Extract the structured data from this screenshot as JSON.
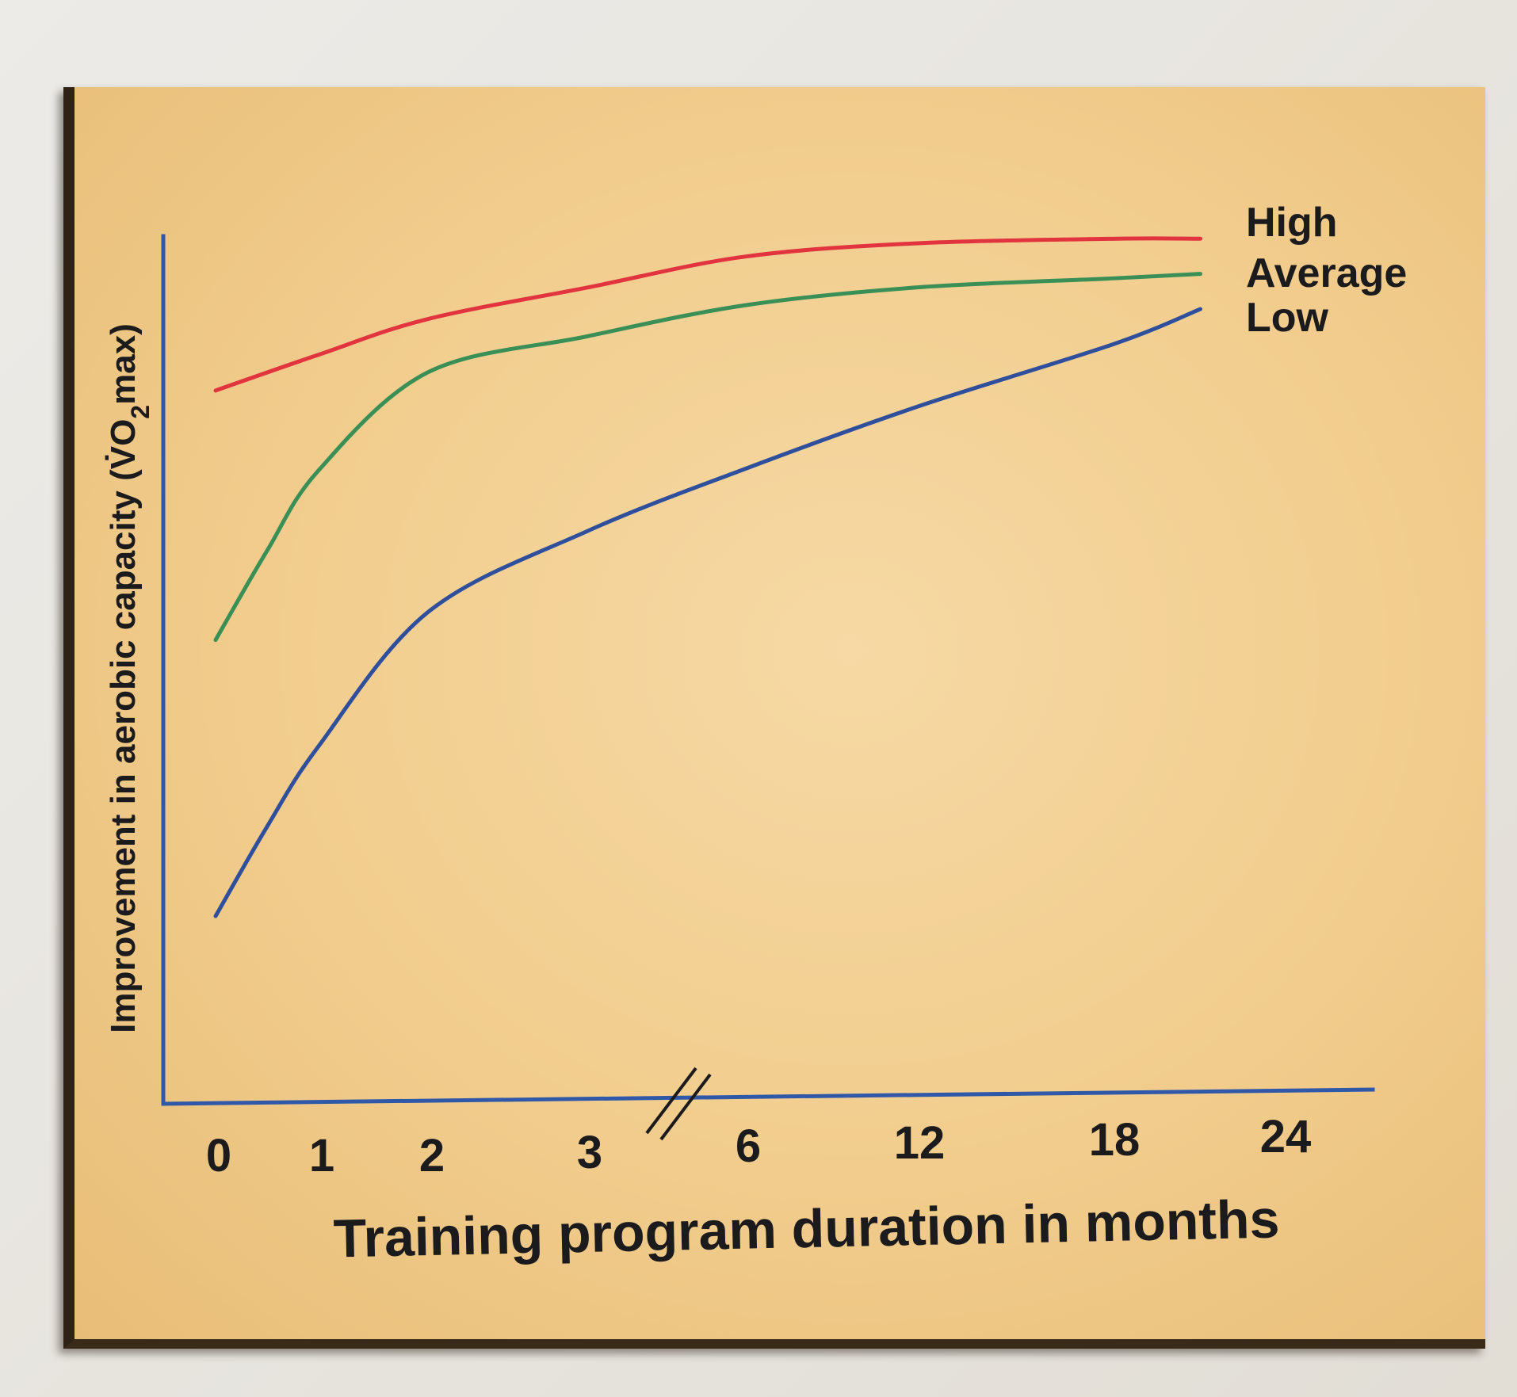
{
  "chart_data": {
    "type": "line",
    "title": "",
    "xlabel": "Training program duration in months",
    "ylabel": "Improvement in aerobic capacity (V̇O₂max)",
    "ylabel_parts": {
      "pre": "Improvement in aerobic capacity (",
      "v": "V̇O",
      "sub": "2",
      "post": "max)"
    },
    "x_tick_labels": [
      "0",
      "1",
      "2",
      "3",
      "6",
      "12",
      "18",
      "24"
    ],
    "x_axis_break": "between 3 and 6",
    "grid": false,
    "legend_placement": "right, at line ends",
    "series": [
      {
        "name": "High",
        "color": "#e2343f",
        "points": [
          [
            0,
            0.8
          ],
          [
            1,
            0.84
          ],
          [
            2,
            0.88
          ],
          [
            3,
            0.915
          ],
          [
            6,
            0.95
          ],
          [
            12,
            0.965
          ],
          [
            18,
            0.97
          ],
          [
            21,
            0.97
          ]
        ]
      },
      {
        "name": "Average",
        "color": "#3a8f56",
        "points": [
          [
            0,
            0.52
          ],
          [
            0.5,
            0.62
          ],
          [
            1,
            0.71
          ],
          [
            2,
            0.82
          ],
          [
            3,
            0.86
          ],
          [
            6,
            0.895
          ],
          [
            12,
            0.915
          ],
          [
            18,
            0.925
          ],
          [
            21,
            0.93
          ]
        ]
      },
      {
        "name": "Low",
        "color": "#2f4f9c",
        "points": [
          [
            0,
            0.21
          ],
          [
            0.5,
            0.31
          ],
          [
            1,
            0.4
          ],
          [
            2,
            0.55
          ],
          [
            3,
            0.64
          ],
          [
            6,
            0.71
          ],
          [
            12,
            0.78
          ],
          [
            18,
            0.85
          ],
          [
            21,
            0.89
          ]
        ]
      }
    ]
  },
  "colors": {
    "axis": "#2f58a8",
    "panel": "#f3d39a"
  }
}
